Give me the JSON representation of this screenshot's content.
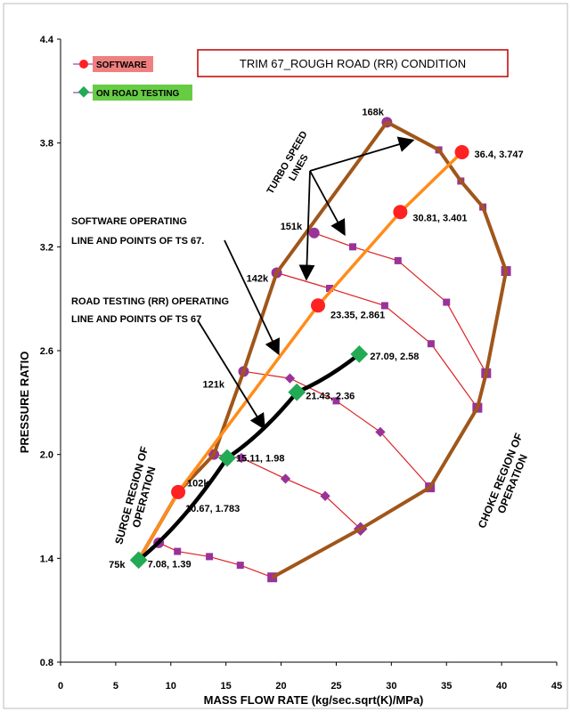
{
  "chart_data": {
    "type": "scatter",
    "title": "TRIM 67_ROUGH ROAD (RR) CONDITION",
    "xlabel": "MASS FLOW RATE (kg/sec.sqrt(K)/MPa)",
    "ylabel": "PRESSURE RATIO",
    "xlim": [
      0,
      45
    ],
    "ylim": [
      0.8,
      4.4
    ],
    "xticks": [
      "0",
      "5",
      "10",
      "15",
      "20",
      "25",
      "30",
      "35",
      "40",
      "45"
    ],
    "yticks": [
      "0.8",
      "1.4",
      "2.0",
      "2.6",
      "3.2",
      "3.8",
      "4.4"
    ],
    "legend": [
      {
        "label": "SOFTWARE",
        "color": "#ff2222",
        "bg": "#f08080"
      },
      {
        "label": "ON ROAD TESTING",
        "color": "#22aa55",
        "bg": "#66cc44"
      }
    ],
    "software_line": {
      "color": "#ff8c1a",
      "points": [
        [
          7.08,
          1.39
        ],
        [
          10.67,
          1.783
        ],
        [
          23.35,
          2.861
        ],
        [
          30.81,
          3.401
        ],
        [
          36.4,
          3.747
        ]
      ]
    },
    "road_line": {
      "color": "#000000",
      "points": [
        [
          7.08,
          1.39
        ],
        [
          15.11,
          1.98
        ],
        [
          21.43,
          2.36
        ],
        [
          27.09,
          2.58
        ]
      ]
    },
    "surge_line": [
      [
        7.08,
        1.39
      ],
      [
        10.67,
        1.783
      ],
      [
        13.9,
        2.0
      ],
      [
        16.6,
        2.48
      ],
      [
        19.6,
        3.05
      ],
      [
        29.6,
        3.92
      ]
    ],
    "choke_line": [
      [
        29.6,
        3.92
      ],
      [
        34.3,
        3.76
      ],
      [
        36.3,
        3.58
      ],
      [
        38.3,
        3.43
      ],
      [
        40.4,
        3.06
      ],
      [
        38.6,
        2.47
      ],
      [
        37.8,
        2.27
      ],
      [
        33.5,
        1.81
      ],
      [
        27.2,
        1.57
      ],
      [
        19.2,
        1.29
      ]
    ],
    "speed_lines": [
      {
        "label": "168k",
        "color": "#dd2222",
        "points": [
          [
            29.6,
            3.92
          ],
          [
            34.3,
            3.76
          ],
          [
            36.3,
            3.58
          ],
          [
            38.3,
            3.43
          ],
          [
            40.4,
            3.06
          ]
        ]
      },
      {
        "label": "151k",
        "color": "#dd2222",
        "points": [
          [
            23.0,
            3.28
          ],
          [
            26.5,
            3.2
          ],
          [
            30.6,
            3.12
          ],
          [
            35.0,
            2.88
          ],
          [
            38.6,
            2.47
          ]
        ]
      },
      {
        "label": "142k",
        "color": "#dd2222",
        "points": [
          [
            19.6,
            3.05
          ],
          [
            24.4,
            2.96
          ],
          [
            29.4,
            2.86
          ],
          [
            33.6,
            2.64
          ],
          [
            37.8,
            2.27
          ]
        ]
      },
      {
        "label": "121k",
        "color": "#dd2222",
        "points": [
          [
            16.6,
            2.48
          ],
          [
            20.8,
            2.44
          ],
          [
            25.0,
            2.31
          ],
          [
            29.0,
            2.13
          ],
          [
            33.5,
            1.81
          ]
        ]
      },
      {
        "label": "102k",
        "color": "#dd2222",
        "points": [
          [
            13.9,
            2.0
          ],
          [
            16.4,
            1.98
          ],
          [
            20.4,
            1.86
          ],
          [
            24.0,
            1.76
          ],
          [
            27.2,
            1.57
          ]
        ]
      },
      {
        "label": "75k",
        "color": "#dd2222",
        "points": [
          [
            8.9,
            1.49
          ],
          [
            10.6,
            1.44
          ],
          [
            13.5,
            1.41
          ],
          [
            16.3,
            1.36
          ],
          [
            19.2,
            1.29
          ]
        ]
      }
    ],
    "point_labels": [
      {
        "text": "36.4, 3.747",
        "x": 36.4,
        "y": 3.747
      },
      {
        "text": "30.81, 3.401",
        "x": 30.81,
        "y": 3.401
      },
      {
        "text": "23.35, 2.861",
        "x": 23.35,
        "y": 2.861
      },
      {
        "text": "27.09, 2.58",
        "x": 27.09,
        "y": 2.58
      },
      {
        "text": "21.43, 2.36",
        "x": 21.43,
        "y": 2.36
      },
      {
        "text": "15.11, 1.98",
        "x": 15.11,
        "y": 1.98
      },
      {
        "text": "10.67, 1.783",
        "x": 10.67,
        "y": 1.783
      },
      {
        "text": "7.08, 1.39",
        "x": 7.08,
        "y": 1.39
      }
    ],
    "annotations": {
      "turbo_speed": [
        "TURBO SPEED",
        "LINES"
      ],
      "software_op": [
        "SOFTWARE  OPERATING",
        "LINE AND  POINTS OF TS 67."
      ],
      "road_op": [
        "ROAD TESTING  (RR)  OPERATING",
        "LINE AND POINTS OF   TS 67"
      ],
      "surge": [
        "SURGE REGION OF",
        "OPERATION"
      ],
      "choke": [
        "CHOKE REGION OF",
        "OPERATION"
      ]
    }
  }
}
